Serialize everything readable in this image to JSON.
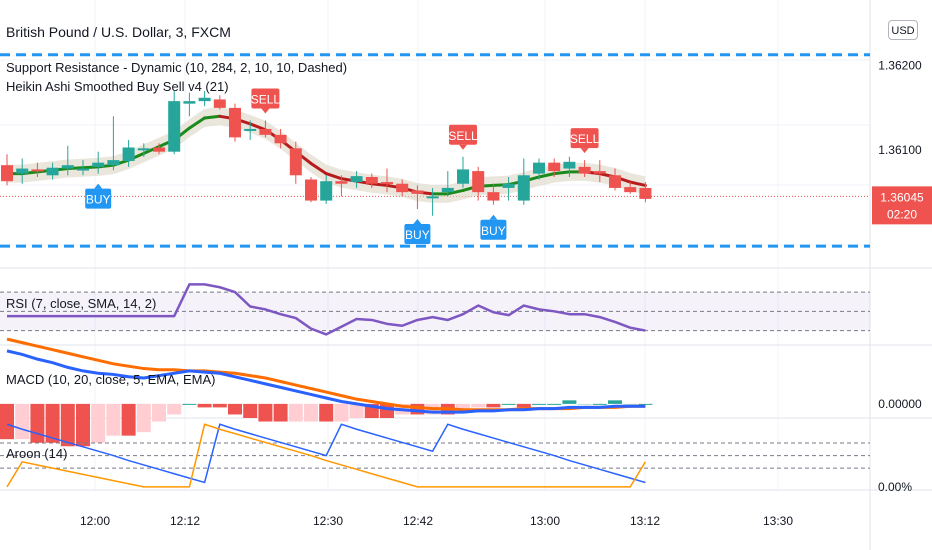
{
  "header": {
    "title": "British Pound / U.S. Dollar, 3, FXCM",
    "indicator1": "Support Resistance - Dynamic (10, 284, 2, 10, 10, Dashed)",
    "indicator2": "Heikin Ashi Smoothed Buy Sell v4  (21)",
    "currency": "USD"
  },
  "panes": {
    "rsi_label": "RSI (7, close, SMA, 14, 2)",
    "macd_label": "MACD (10, 20, close, 5, EMA, EMA)",
    "aroon_label": "Aroon (14)"
  },
  "colors": {
    "bull": "#26a69a",
    "bear": "#ef5350",
    "level": "#2196f3",
    "rsi": "#7e57c2",
    "macd": "#2962ff",
    "signal": "#ff6d00",
    "aroon_up": "#2962ff",
    "aroon_down": "#ff9800",
    "ha_up": "#1b8a1b",
    "ha_down": "#b71c1c",
    "price_tag": "#ef5350"
  },
  "chart_data": {
    "type": "candlestick",
    "symbol": "British Pound / U.S. Dollar, 3, FXCM",
    "price_axis": {
      "labels": [
        "1.36200",
        "1.36100"
      ],
      "ylim": [
        1.3596,
        1.36278
      ]
    },
    "current_price": {
      "label": "1.36045",
      "countdown": "02:20",
      "value": 1.36045
    },
    "support_resistance": [
      1.36213,
      1.35986
    ],
    "time_axis": {
      "labels": [
        "12:00",
        "12:12",
        "12:30",
        "12:42",
        "13:00",
        "13:12",
        "13:30"
      ]
    },
    "candles": [
      {
        "o": 1.36082,
        "h": 1.36095,
        "l": 1.36058,
        "c": 1.36063
      },
      {
        "o": 1.36072,
        "h": 1.3609,
        "l": 1.3606,
        "c": 1.36078
      },
      {
        "o": 1.36077,
        "h": 1.36085,
        "l": 1.36068,
        "c": 1.36075
      },
      {
        "o": 1.3607,
        "h": 1.36085,
        "l": 1.36065,
        "c": 1.36079
      },
      {
        "o": 1.36078,
        "h": 1.36105,
        "l": 1.3607,
        "c": 1.36082
      },
      {
        "o": 1.36076,
        "h": 1.36088,
        "l": 1.3607,
        "c": 1.36078
      },
      {
        "o": 1.3608,
        "h": 1.36098,
        "l": 1.36072,
        "c": 1.36085
      },
      {
        "o": 1.36082,
        "h": 1.3614,
        "l": 1.36076,
        "c": 1.36088
      },
      {
        "o": 1.36087,
        "h": 1.36112,
        "l": 1.3608,
        "c": 1.36103
      },
      {
        "o": 1.361,
        "h": 1.36108,
        "l": 1.36092,
        "c": 1.36102
      },
      {
        "o": 1.36103,
        "h": 1.36108,
        "l": 1.36095,
        "c": 1.36098
      },
      {
        "o": 1.36098,
        "h": 1.3617,
        "l": 1.36095,
        "c": 1.36158
      },
      {
        "o": 1.36155,
        "h": 1.36168,
        "l": 1.3614,
        "c": 1.36158
      },
      {
        "o": 1.36158,
        "h": 1.3617,
        "l": 1.36152,
        "c": 1.36162
      },
      {
        "o": 1.3616,
        "h": 1.36165,
        "l": 1.36148,
        "c": 1.3615
      },
      {
        "o": 1.3615,
        "h": 1.36155,
        "l": 1.3611,
        "c": 1.36115
      },
      {
        "o": 1.36123,
        "h": 1.36135,
        "l": 1.36112,
        "c": 1.36125
      },
      {
        "o": 1.36125,
        "h": 1.36135,
        "l": 1.36115,
        "c": 1.36118
      },
      {
        "o": 1.36118,
        "h": 1.36125,
        "l": 1.36102,
        "c": 1.36108
      },
      {
        "o": 1.36102,
        "h": 1.3611,
        "l": 1.3606,
        "c": 1.3607
      },
      {
        "o": 1.36065,
        "h": 1.36068,
        "l": 1.36038,
        "c": 1.3604
      },
      {
        "o": 1.3604,
        "h": 1.3607,
        "l": 1.36036,
        "c": 1.36063
      },
      {
        "o": 1.36063,
        "h": 1.3607,
        "l": 1.36045,
        "c": 1.3606
      },
      {
        "o": 1.36062,
        "h": 1.36075,
        "l": 1.36055,
        "c": 1.36069
      },
      {
        "o": 1.36068,
        "h": 1.36072,
        "l": 1.36055,
        "c": 1.3606
      },
      {
        "o": 1.36062,
        "h": 1.36078,
        "l": 1.3605,
        "c": 1.3606
      },
      {
        "o": 1.3606,
        "h": 1.36065,
        "l": 1.36045,
        "c": 1.3605
      },
      {
        "o": 1.36052,
        "h": 1.36058,
        "l": 1.3603,
        "c": 1.36048
      },
      {
        "o": 1.36045,
        "h": 1.36055,
        "l": 1.36022,
        "c": 1.36045
      },
      {
        "o": 1.3605,
        "h": 1.36075,
        "l": 1.36045,
        "c": 1.36055
      },
      {
        "o": 1.3606,
        "h": 1.36092,
        "l": 1.36055,
        "c": 1.36077
      },
      {
        "o": 1.36075,
        "h": 1.3608,
        "l": 1.3604,
        "c": 1.3605
      },
      {
        "o": 1.3605,
        "h": 1.3606,
        "l": 1.36035,
        "c": 1.3604
      },
      {
        "o": 1.36055,
        "h": 1.36068,
        "l": 1.3604,
        "c": 1.3606
      },
      {
        "o": 1.3604,
        "h": 1.3609,
        "l": 1.36035,
        "c": 1.3607
      },
      {
        "o": 1.36072,
        "h": 1.3609,
        "l": 1.36065,
        "c": 1.36085
      },
      {
        "o": 1.36085,
        "h": 1.3609,
        "l": 1.36068,
        "c": 1.36075
      },
      {
        "o": 1.36078,
        "h": 1.36092,
        "l": 1.36068,
        "c": 1.36086
      },
      {
        "o": 1.3608,
        "h": 1.36088,
        "l": 1.36068,
        "c": 1.36072
      },
      {
        "o": 1.36075,
        "h": 1.36088,
        "l": 1.36062,
        "c": 1.36072
      },
      {
        "o": 1.3607,
        "h": 1.36078,
        "l": 1.36052,
        "c": 1.36055
      },
      {
        "o": 1.36056,
        "h": 1.36062,
        "l": 1.36048,
        "c": 1.3605
      },
      {
        "o": 1.36055,
        "h": 1.36062,
        "l": 1.36038,
        "c": 1.36042
      }
    ],
    "ha_smoothed": [
      1.36072,
      1.36072,
      1.36074,
      1.36076,
      1.36078,
      1.36079,
      1.3608,
      1.36082,
      1.36088,
      1.36096,
      1.36104,
      1.36112,
      1.36126,
      1.36138,
      1.3614,
      1.36137,
      1.36131,
      1.36124,
      1.36112,
      1.36098,
      1.36084,
      1.36072,
      1.36066,
      1.36063,
      1.3606,
      1.36058,
      1.36055,
      1.3605,
      1.36048,
      1.36048,
      1.36052,
      1.36057,
      1.36058,
      1.36059,
      1.36063,
      1.36068,
      1.36072,
      1.36074,
      1.36074,
      1.36072,
      1.36068,
      1.36062,
      1.36058
    ],
    "signals": [
      {
        "type": "SELL",
        "index": 17
      },
      {
        "type": "BUY",
        "index": 6
      },
      {
        "type": "SELL",
        "index": 30
      },
      {
        "type": "BUY",
        "index": 27
      },
      {
        "type": "BUY",
        "index": 32
      },
      {
        "type": "SELL",
        "index": 38
      }
    ],
    "rsi": {
      "label": "RSI (7, close, SMA, 14, 2)",
      "levels": [
        70,
        50,
        30
      ],
      "ylim": [
        15,
        95
      ],
      "values": [
        45,
        45,
        45,
        45,
        45,
        45,
        45,
        45,
        45,
        45,
        45,
        45,
        78,
        78,
        75,
        70,
        55,
        52,
        47,
        43,
        32,
        26,
        34,
        42,
        41,
        37,
        35,
        41,
        44,
        41,
        47,
        56,
        49,
        46,
        56,
        52,
        50,
        47,
        47,
        44,
        39,
        33,
        30
      ]
    },
    "macd": {
      "label": "MACD (10, 20, close, 5, EMA, EMA)",
      "axis_label": "0.00000",
      "ylim": [
        -0.00012,
        0.0005
      ],
      "macd": [
        0.00045,
        0.00042,
        0.00038,
        0.00035,
        0.00031,
        0.00028,
        0.00026,
        0.00025,
        0.00023,
        0.00022,
        0.00024,
        0.00026,
        0.00028,
        0.00027,
        0.00026,
        0.00023,
        0.0002,
        0.00017,
        0.00014,
        0.00011,
        8e-05,
        5e-05,
        2e-05,
        0.0,
        -2e-05,
        -4e-05,
        -5e-05,
        -6e-05,
        -7e-05,
        -7e-05,
        -7e-05,
        -6e-05,
        -6e-05,
        -5e-05,
        -5e-05,
        -4e-05,
        -4e-05,
        -3e-05,
        -3e-05,
        -3e-05,
        -2e-05,
        -2e-05,
        -2e-05
      ],
      "signal": [
        0.00055,
        0.00052,
        0.00049,
        0.00046,
        0.00043,
        0.0004,
        0.00037,
        0.00034,
        0.00032,
        0.0003,
        0.00029,
        0.00029,
        0.00028,
        0.00028,
        0.00027,
        0.00026,
        0.00024,
        0.00022,
        0.00019,
        0.00016,
        0.00013,
        0.0001,
        7e-05,
        4e-05,
        2e-05,
        0.0,
        -2e-05,
        -3e-05,
        -4e-05,
        -4e-05,
        -5e-05,
        -5e-05,
        -5e-05,
        -5e-05,
        -4e-05,
        -4e-05,
        -4e-05,
        -4e-05,
        -3e-05,
        -3e-05,
        -3e-05,
        -2e-05,
        -2e-05
      ]
    },
    "aroon": {
      "label": "Aroon (14)",
      "axis_label": "0.00%",
      "levels": [
        70,
        50,
        30
      ],
      "ylim": [
        -5,
        110
      ],
      "up": [
        100,
        92,
        85,
        78,
        71,
        64,
        57,
        50,
        42,
        35,
        28,
        21,
        14,
        7,
        100,
        92,
        85,
        78,
        71,
        64,
        57,
        50,
        100,
        92,
        85,
        78,
        71,
        64,
        57,
        100,
        92,
        85,
        78,
        71,
        64,
        57,
        50,
        42,
        35,
        28,
        21,
        14,
        7
      ],
      "down": [
        0,
        40,
        35,
        30,
        25,
        20,
        15,
        10,
        5,
        0,
        0,
        0,
        0,
        100,
        92,
        85,
        78,
        71,
        64,
        57,
        50,
        42,
        35,
        28,
        21,
        14,
        7,
        0,
        0,
        0,
        0,
        0,
        0,
        0,
        0,
        0,
        0,
        0,
        0,
        0,
        0,
        0,
        40
      ]
    }
  }
}
